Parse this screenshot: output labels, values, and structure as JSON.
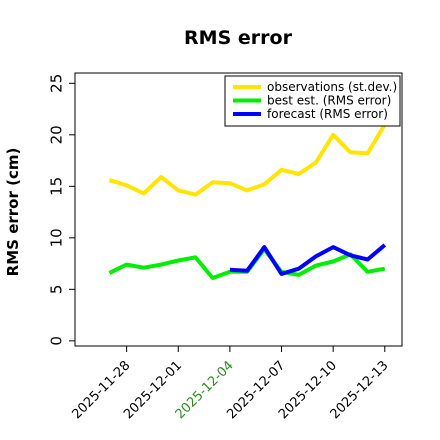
{
  "chart_data": {
    "type": "line",
    "title": "RMS error",
    "ylabel": "RMS error (cm)",
    "xlabel": "",
    "ylim": [
      -0.5,
      26
    ],
    "yticks": [
      0,
      5,
      10,
      15,
      20,
      25
    ],
    "xlim": [
      "2025-11-25",
      "2025-12-14"
    ],
    "xticks": [
      {
        "date": "2025-11-28",
        "label": "2025-11-28",
        "color": "#000000"
      },
      {
        "date": "2025-12-01",
        "label": "2025-12-01",
        "color": "#000000"
      },
      {
        "date": "2025-12-04",
        "label": "2025-12-04",
        "color": "#2e8b22"
      },
      {
        "date": "2025-12-07",
        "label": "2025-12-07",
        "color": "#000000"
      },
      {
        "date": "2025-12-10",
        "label": "2025-12-10",
        "color": "#000000"
      },
      {
        "date": "2025-12-13",
        "label": "2025-12-13",
        "color": "#000000"
      }
    ],
    "legend_position": "top-right",
    "grid": false,
    "series": [
      {
        "name": "observations (st.dev.)",
        "color": "#ffe500",
        "points": [
          [
            "2025-11-27",
            15.6
          ],
          [
            "2025-11-28",
            15.1
          ],
          [
            "2025-11-29",
            14.3
          ],
          [
            "2025-11-30",
            15.9
          ],
          [
            "2025-12-01",
            14.6
          ],
          [
            "2025-12-02",
            14.2
          ],
          [
            "2025-12-03",
            15.4
          ],
          [
            "2025-12-04",
            15.3
          ],
          [
            "2025-12-05",
            14.6
          ],
          [
            "2025-12-06",
            15.2
          ],
          [
            "2025-12-07",
            16.6
          ],
          [
            "2025-12-08",
            16.2
          ],
          [
            "2025-12-09",
            17.3
          ],
          [
            "2025-12-10",
            20.0
          ],
          [
            "2025-12-11",
            18.3
          ],
          [
            "2025-12-12",
            18.2
          ],
          [
            "2025-12-13",
            21.0
          ]
        ]
      },
      {
        "name": "best est. (RMS error)",
        "color": "#00ee00",
        "points": [
          [
            "2025-11-27",
            6.6
          ],
          [
            "2025-11-28",
            7.4
          ],
          [
            "2025-11-29",
            7.1
          ],
          [
            "2025-11-30",
            7.4
          ],
          [
            "2025-12-01",
            7.8
          ],
          [
            "2025-12-02",
            8.1
          ],
          [
            "2025-12-03",
            6.1
          ],
          [
            "2025-12-04",
            6.7
          ],
          [
            "2025-12-05",
            6.7
          ],
          [
            "2025-12-06",
            8.9
          ],
          [
            "2025-12-07",
            6.7
          ],
          [
            "2025-12-08",
            6.4
          ],
          [
            "2025-12-09",
            7.3
          ],
          [
            "2025-12-10",
            7.7
          ],
          [
            "2025-12-11",
            8.4
          ],
          [
            "2025-12-12",
            6.7
          ],
          [
            "2025-12-13",
            7.0
          ]
        ]
      },
      {
        "name": "forecast (RMS error)",
        "color": "#0000ff",
        "points": [
          [
            "2025-12-04",
            6.9
          ],
          [
            "2025-12-05",
            6.8
          ],
          [
            "2025-12-06",
            9.1
          ],
          [
            "2025-12-07",
            6.5
          ],
          [
            "2025-12-08",
            7.0
          ],
          [
            "2025-12-09",
            8.2
          ],
          [
            "2025-12-10",
            9.1
          ],
          [
            "2025-12-11",
            8.3
          ],
          [
            "2025-12-12",
            7.9
          ],
          [
            "2025-12-13",
            9.3
          ]
        ]
      }
    ]
  }
}
